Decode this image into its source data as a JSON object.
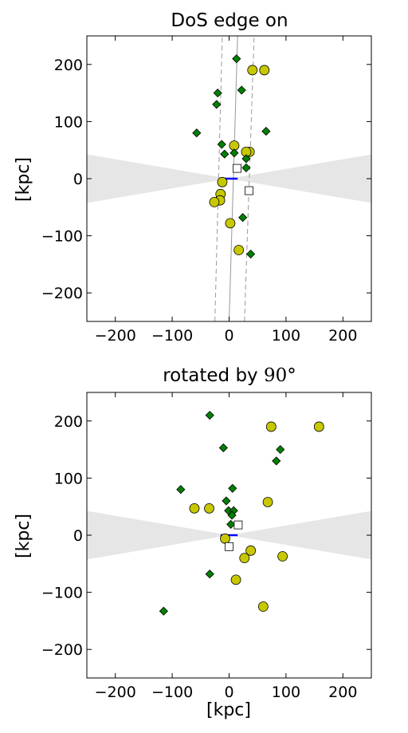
{
  "chart_data": [
    {
      "type": "scatter",
      "title": "DoS edge on",
      "xlabel": "",
      "ylabel": "[kpc]",
      "xlim": [
        -250,
        250
      ],
      "ylim": [
        -250,
        250
      ],
      "xticks": [
        -200,
        -100,
        0,
        100,
        200
      ],
      "yticks": [
        -200,
        -100,
        0,
        100,
        200
      ],
      "grid": false,
      "colors": {
        "green": "#008000",
        "yellow": "#c8c800",
        "line": "#999999",
        "disk": "#e6e6e6",
        "bar": "#0000ff"
      },
      "disk_wedge": {
        "slope": 0.17
      },
      "bar": [
        [
          -15,
          0
        ],
        [
          15,
          0
        ]
      ],
      "plane_line": {
        "solid": [
          [
            0,
            -250
          ],
          [
            15,
            250
          ]
        ],
        "dashed": [
          [
            [
              -25,
              -250
            ],
            [
              -12,
              250
            ]
          ],
          [
            [
              27,
              -250
            ],
            [
              44,
              250
            ]
          ]
        ]
      },
      "series_green_diamonds": [
        [
          13,
          210
        ],
        [
          22,
          155
        ],
        [
          -20,
          150
        ],
        [
          -22,
          130
        ],
        [
          -57,
          80
        ],
        [
          65,
          83
        ],
        [
          -13,
          60
        ],
        [
          -8,
          43
        ],
        [
          9,
          45
        ],
        [
          30,
          35
        ],
        [
          30,
          19
        ],
        [
          24,
          -68
        ],
        [
          38,
          -132
        ]
      ],
      "series_yellow_circles": [
        [
          41,
          190
        ],
        [
          62,
          190
        ],
        [
          9,
          58
        ],
        [
          36,
          47
        ],
        [
          30,
          47
        ],
        [
          -12,
          -6
        ],
        [
          -15,
          -27
        ],
        [
          -16,
          -38
        ],
        [
          -26,
          -41
        ],
        [
          2,
          -78
        ],
        [
          17,
          -125
        ]
      ],
      "series_open_squares": [
        [
          14,
          18
        ],
        [
          35,
          -21
        ]
      ]
    },
    {
      "type": "scatter",
      "title": "rotated by ",
      "title_math": "90°",
      "xlabel": "[kpc]",
      "ylabel": "[kpc]",
      "xlim": [
        -250,
        250
      ],
      "ylim": [
        -250,
        250
      ],
      "xticks": [
        -200,
        -100,
        0,
        100,
        200
      ],
      "yticks": [
        -200,
        -100,
        0,
        100,
        200
      ],
      "grid": false,
      "colors": {
        "green": "#008000",
        "yellow": "#c8c800",
        "line": "#999999",
        "disk": "#e6e6e6",
        "bar": "#0000ff"
      },
      "disk_wedge": {
        "slope": 0.17
      },
      "bar": [
        [
          -15,
          0
        ],
        [
          15,
          0
        ]
      ],
      "series_green_diamonds": [
        [
          -34,
          210
        ],
        [
          -10,
          153
        ],
        [
          90,
          150
        ],
        [
          83,
          130
        ],
        [
          -85,
          80
        ],
        [
          6,
          82
        ],
        [
          -5,
          60
        ],
        [
          -1,
          43
        ],
        [
          8,
          43
        ],
        [
          5,
          35
        ],
        [
          3,
          19
        ],
        [
          -34,
          -68
        ],
        [
          -115,
          -133
        ]
      ],
      "series_yellow_circles": [
        [
          74,
          190
        ],
        [
          158,
          190
        ],
        [
          -61,
          47
        ],
        [
          -35,
          47
        ],
        [
          68,
          58
        ],
        [
          -7,
          -6
        ],
        [
          38,
          -27
        ],
        [
          94,
          -37
        ],
        [
          27,
          -40
        ],
        [
          12,
          -78
        ],
        [
          60,
          -125
        ]
      ],
      "series_open_squares": [
        [
          16,
          18
        ],
        [
          0,
          -20
        ]
      ]
    }
  ]
}
